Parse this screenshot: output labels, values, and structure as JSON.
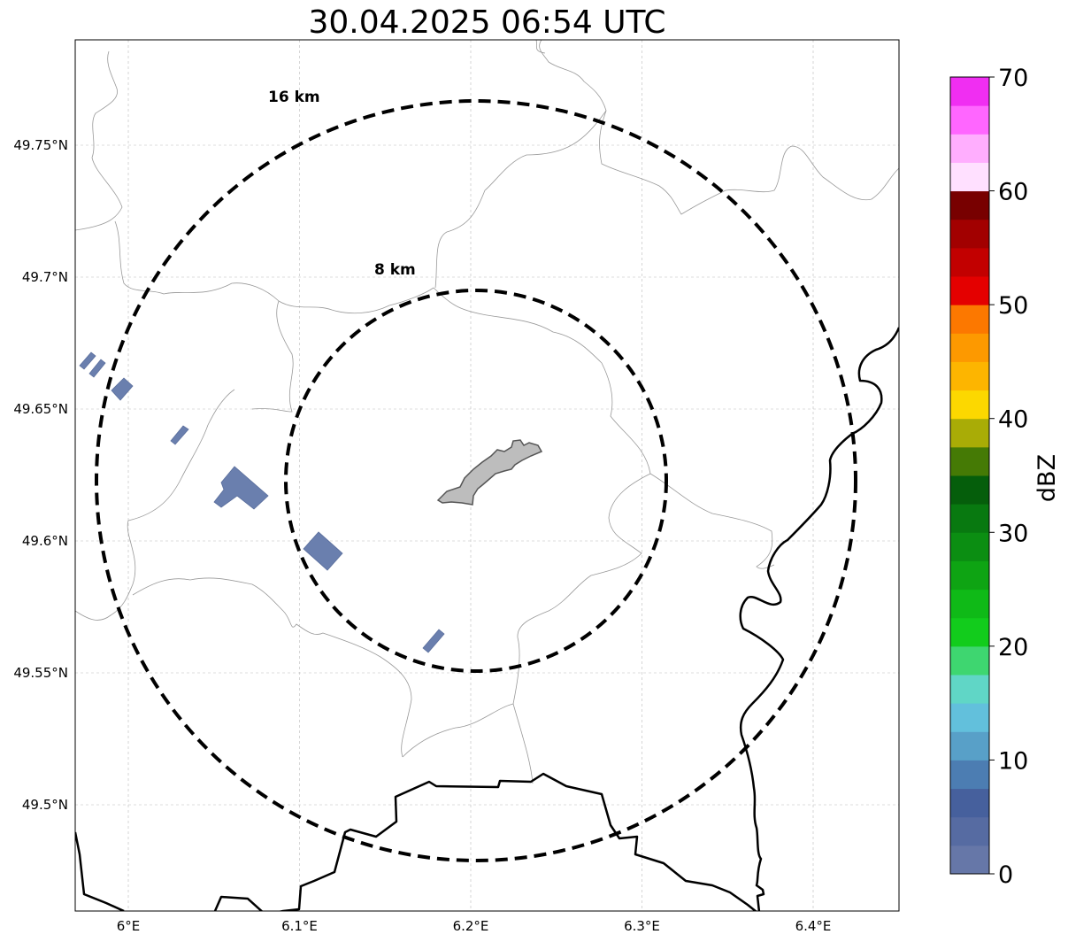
{
  "title": "30.04.2025 06:54 UTC",
  "map": {
    "x_ticks": [
      {
        "value": 6.0,
        "label": "6°E"
      },
      {
        "value": 6.1,
        "label": "6.1°E"
      },
      {
        "value": 6.2,
        "label": "6.2°E"
      },
      {
        "value": 6.3,
        "label": "6.3°E"
      },
      {
        "value": 6.4,
        "label": "6.4°E"
      }
    ],
    "y_ticks": [
      {
        "value": 49.75,
        "label": "49.75°N"
      },
      {
        "value": 49.7,
        "label": "49.7°N"
      },
      {
        "value": 49.65,
        "label": "49.65°N"
      },
      {
        "value": 49.6,
        "label": "49.6°N"
      },
      {
        "value": 49.55,
        "label": "49.55°N"
      },
      {
        "value": 49.5,
        "label": "49.5°N"
      }
    ],
    "grid": true,
    "range_rings": [
      {
        "label": "16 km",
        "radius_km": 16
      },
      {
        "label": "8 km",
        "radius_km": 8
      }
    ],
    "radar_center": {
      "lon": 6.2,
      "lat": 49.623
    },
    "colors": {
      "echo": "#6a7fae",
      "city_fill": "#bdbdbd",
      "city_edge": "#555555",
      "border": "#000000",
      "admin": "#999999"
    }
  },
  "colorbar": {
    "label": "dBZ",
    "min": 0,
    "max": 70,
    "step": 2.5,
    "tick_labels": [
      "0",
      "10",
      "20",
      "30",
      "40",
      "50",
      "60",
      "70"
    ],
    "colors": [
      "#6677a8",
      "#566ba2",
      "#46609d",
      "#4c7db2",
      "#58a0c8",
      "#62c0dc",
      "#60d6c6",
      "#3ed670",
      "#12cc1c",
      "#0fba17",
      "#0ea413",
      "#0b8e12",
      "#087910",
      "#055e0b",
      "#457a05",
      "#a9ac06",
      "#fcd800",
      "#fdb500",
      "#fd9900",
      "#fc7800",
      "#e40000",
      "#c20000",
      "#a20000",
      "#780000",
      "#ffe0ff",
      "#ffaefe",
      "#ff66ff",
      "#f02ef2"
    ]
  }
}
